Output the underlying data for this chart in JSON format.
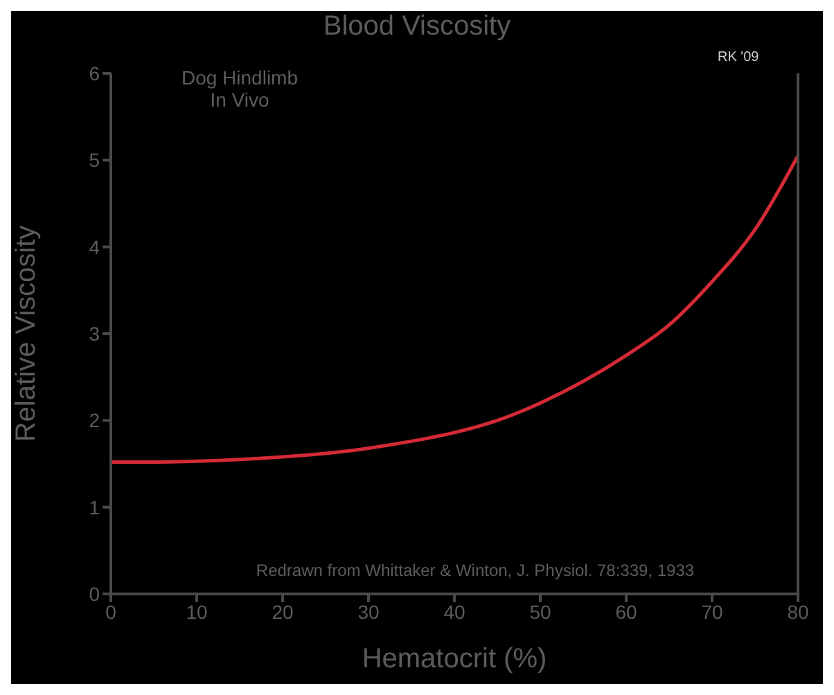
{
  "chart_data": {
    "type": "line",
    "title": "Blood Viscosity",
    "xlabel": "Hematocrit (%)",
    "ylabel": "Relative Viscosity",
    "annotations": [
      "Dog Hindlimb\nIn Vivo",
      "RK '09",
      "Redrawn from Whittaker & Winton, J. Physiol. 78:339, 1933"
    ],
    "x": [
      0,
      5,
      10,
      15,
      20,
      25,
      30,
      35,
      40,
      45,
      50,
      55,
      60,
      65,
      70,
      75,
      80
    ],
    "series": [
      {
        "color": "#d42a36",
        "values": [
          1.52,
          1.52,
          1.53,
          1.55,
          1.58,
          1.62,
          1.68,
          1.76,
          1.86,
          2.0,
          2.2,
          2.45,
          2.75,
          3.1,
          3.6,
          4.2,
          5.05
        ]
      }
    ],
    "xlim": [
      0,
      80
    ],
    "xticks": [
      0,
      10,
      20,
      30,
      40,
      50,
      60,
      70,
      80
    ],
    "ylim": [
      0,
      6
    ],
    "yticks": [
      0,
      1,
      2,
      3,
      4,
      5,
      6
    ],
    "grid": false,
    "legend": false
  }
}
